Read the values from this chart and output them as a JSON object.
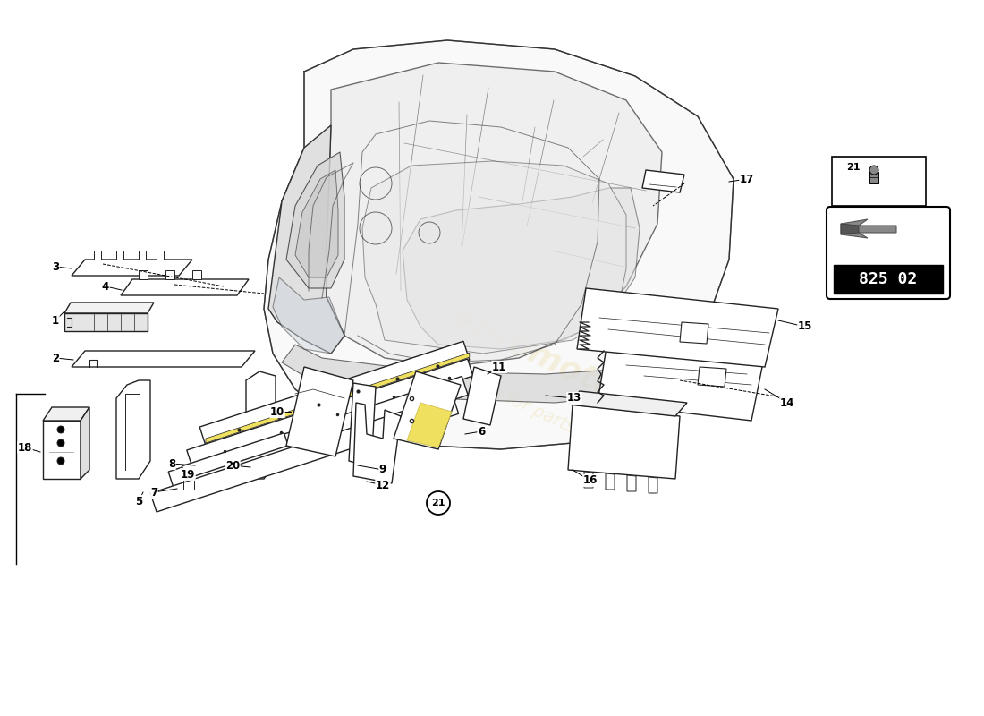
{
  "background_color": "#ffffff",
  "car_color": "#333333",
  "part_color": "#ffffff",
  "part_edge_color": "#222222",
  "watermark_color1": "#e8d070",
  "watermark_color2": "#e8d070",
  "part_number_bg": "#000000",
  "part_number_text": "#ffffff",
  "part_number": "825 02"
}
